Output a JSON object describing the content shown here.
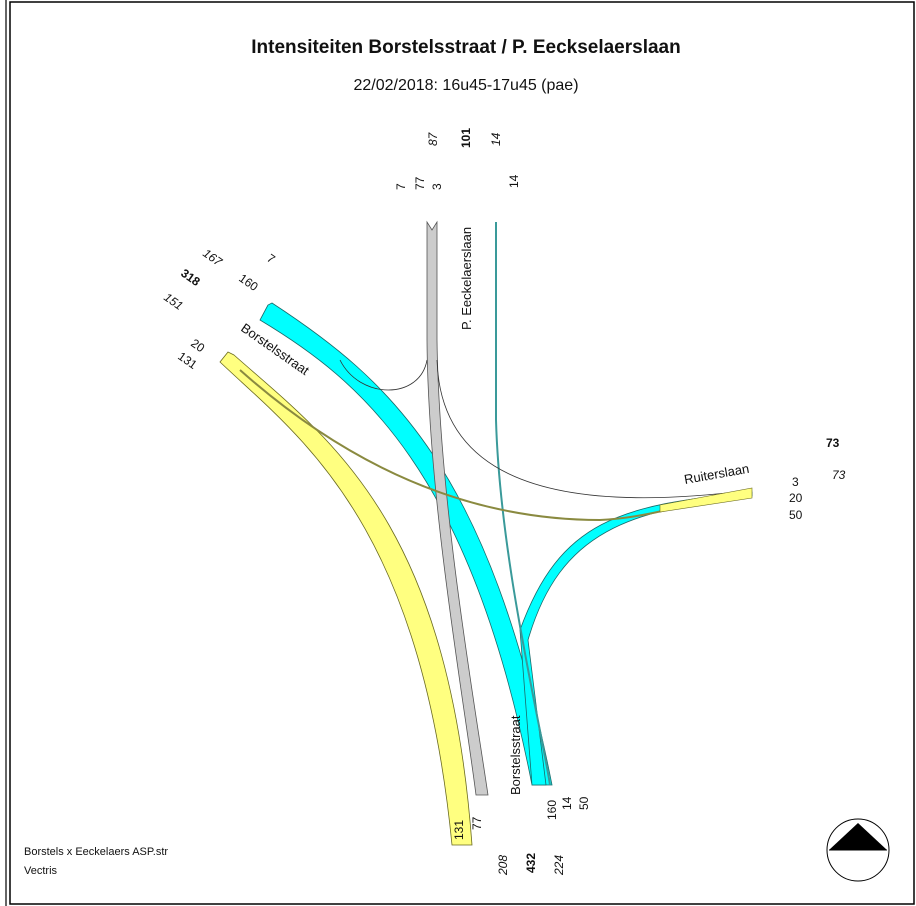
{
  "title": "Intensiteiten Borstelsstraat / P. Eeckselaerslaan",
  "subtitle": "22/02/2018: 16u45-17u45 (pae)",
  "streets": {
    "north": "P. Eeckelaerslaan",
    "northwest": "Borstelsstraat",
    "east": "Ruiterslaan",
    "south": "Borstelsstraat"
  },
  "north_arm": {
    "in_turns": [
      "7",
      "77",
      "3"
    ],
    "in_total": "87",
    "total": "101",
    "out_total": "14",
    "out_flow": "14"
  },
  "northwest_arm": {
    "total": "318",
    "in_total": "167",
    "out_total": "151",
    "in_turns_upper": [
      "7",
      "160"
    ],
    "in_turns_lower": [
      "20",
      "131"
    ]
  },
  "east_arm": {
    "total": "73",
    "out_total": "73",
    "in_turns": [
      "3",
      "20",
      "50"
    ]
  },
  "south_arm": {
    "in_left": [
      "131",
      "77"
    ],
    "in_right": [
      "160",
      "14",
      "50"
    ],
    "out_total": "208",
    "total": "432",
    "in_total": "224"
  },
  "footer": {
    "file": "Borstels x Eeckelaers ASP.str",
    "company": "Vectris"
  },
  "colors": {
    "cyan": "#00ffff",
    "yellow": "#ffff80",
    "gray": "#cccccc",
    "teal": "#3a9a9a",
    "olive": "#8a8a40"
  }
}
